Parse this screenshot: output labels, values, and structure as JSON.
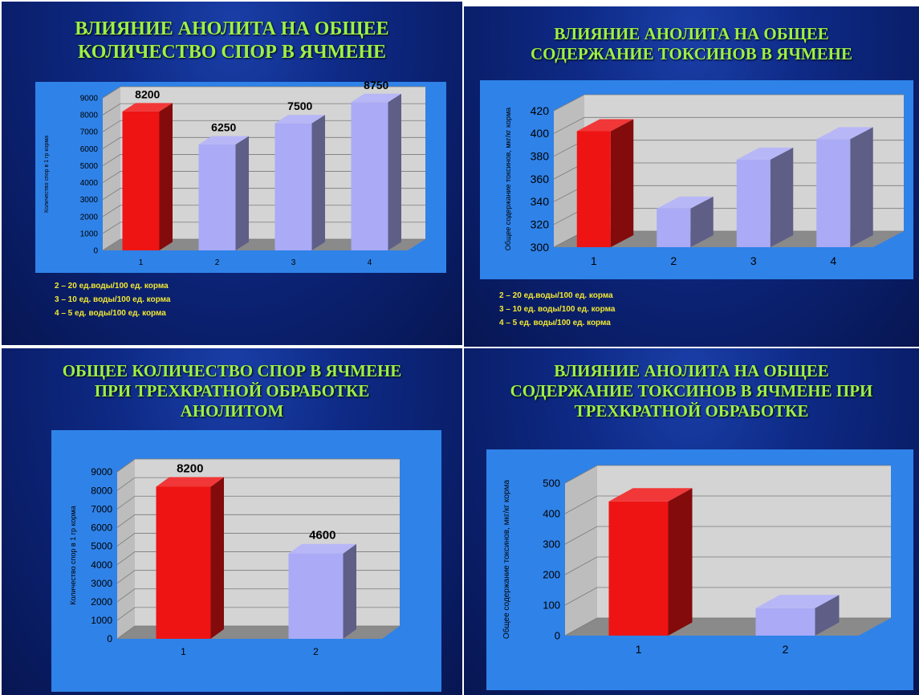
{
  "slides": [
    {
      "title": "ВЛИЯНИЕ АНОЛИТА НА ОБЩЕЕ\nКОЛИЧЕСТВО СПОР В ЯЧМЕНЕ",
      "legend": [
        "2 – 20 ед.воды/100 ед. корма",
        "3 – 10 ед. воды/100 ед. корма",
        "4 – 5 ед. воды/100 ед. корма"
      ]
    },
    {
      "title": "ВЛИЯНИЕ АНОЛИТА НА ОБЩЕЕ\nСОДЕРЖАНИЕ ТОКСИНОВ В ЯЧМЕНЕ",
      "legend": [
        "2 – 20 ед.воды/100 ед. корма",
        "3 – 10 ед. воды/100 ед. корма",
        "4 – 5 ед. воды/100 ед. корма"
      ]
    },
    {
      "title": "ОБЩЕЕ КОЛИЧЕСТВО СПОР В ЯЧМЕНЕ\nПРИ ТРЕХКРАТНОЙ ОБРАБОТКЕ\nАНОЛИТОМ",
      "legend": []
    },
    {
      "title": "ВЛИЯНИЕ АНОЛИТА НА ОБЩЕЕ\nСОДЕРЖАНИЕ ТОКСИНОВ В ЯЧМЕНЕ ПРИ\nТРЕХКРАТНОЙ ОБРАБОТКЕ",
      "legend": []
    }
  ],
  "colors": {
    "title": "#9cf046",
    "legend": "#f2e832",
    "panel": "#2f82e8",
    "bar_red": "#ee1414",
    "bar_lavender": "#aaaaf6",
    "wall": "#d4d4d4",
    "floor": "#8a8a8a"
  },
  "chart_data": [
    {
      "type": "bar",
      "categories": [
        "1",
        "2",
        "3",
        "4"
      ],
      "values": [
        8200,
        6250,
        7500,
        8750
      ],
      "data_labels": [
        "8200",
        "6250",
        "7500",
        "8750"
      ],
      "bar_colors": [
        "red",
        "lavender",
        "lavender",
        "lavender"
      ],
      "ylabel": "Количество спор в 1 гр корма",
      "ylim": [
        0,
        9000
      ],
      "yticks": [
        0,
        1000,
        2000,
        3000,
        4000,
        5000,
        6000,
        7000,
        8000,
        9000
      ],
      "grid": true
    },
    {
      "type": "bar",
      "categories": [
        "1",
        "2",
        "3",
        "4"
      ],
      "values": [
        402,
        334,
        377,
        395
      ],
      "data_labels": [],
      "bar_colors": [
        "red",
        "lavender",
        "lavender",
        "lavender"
      ],
      "ylabel": "Общее содержание токсинов, мкг/кг корма",
      "ylim": [
        300,
        420
      ],
      "yticks": [
        300,
        320,
        340,
        360,
        380,
        400,
        420
      ],
      "grid": true
    },
    {
      "type": "bar",
      "categories": [
        "1",
        "2"
      ],
      "values": [
        8200,
        4600
      ],
      "data_labels": [
        "8200",
        "4600"
      ],
      "bar_colors": [
        "red",
        "lavender"
      ],
      "ylabel": "Количество спор в 1 гр корма",
      "ylim": [
        0,
        9000
      ],
      "yticks": [
        0,
        1000,
        2000,
        3000,
        4000,
        5000,
        6000,
        7000,
        8000,
        9000
      ],
      "grid": true
    },
    {
      "type": "bar",
      "categories": [
        "1",
        "2"
      ],
      "values": [
        440,
        90
      ],
      "data_labels": [],
      "bar_colors": [
        "red",
        "lavender"
      ],
      "ylabel": "Общее содержание токсинов, мкг/кг корма",
      "ylim": [
        0,
        500
      ],
      "yticks": [
        0,
        100,
        200,
        300,
        400,
        500
      ],
      "grid": true
    }
  ]
}
